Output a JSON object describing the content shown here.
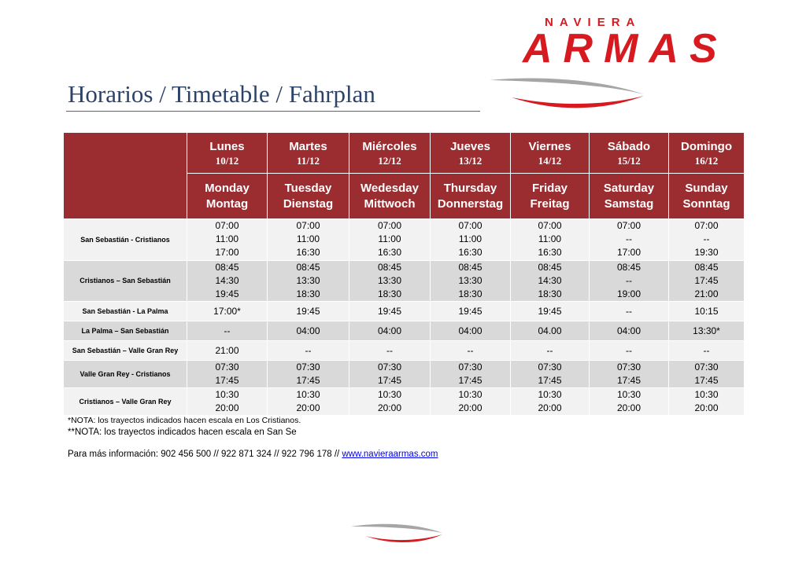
{
  "logo": {
    "line1": "NAVIERA",
    "line2": "ARMAS",
    "brand_color": "#d71920",
    "swoosh_gray": "#a6a6a6"
  },
  "title": "Horarios / Timetable / Fahrplan",
  "header_color": "#9b2d30",
  "days": [
    {
      "es": "Lunes",
      "date": "10/12",
      "en": "Monday",
      "de": "Montag"
    },
    {
      "es": "Martes",
      "date": "11/12",
      "en": "Tuesday",
      "de": "Dienstag"
    },
    {
      "es": "Miércoles",
      "date": "12/12",
      "en": "Wedesday",
      "de": "Mittwoch"
    },
    {
      "es": "Jueves",
      "date": "13/12",
      "en": "Thursday",
      "de": "Donnerstag"
    },
    {
      "es": "Viernes",
      "date": "14/12",
      "en": "Friday",
      "de": "Freitag"
    },
    {
      "es": "Sábado",
      "date": "15/12",
      "en": "Saturday",
      "de": "Samstag"
    },
    {
      "es": "Domingo",
      "date": "16/12",
      "en": "Sunday",
      "de": "Sonntag"
    }
  ],
  "routes": [
    {
      "name": "San Sebastián - Cristianos",
      "cells": [
        [
          "07:00",
          "11:00",
          "17:00"
        ],
        [
          "07:00",
          "11:00",
          "16:30"
        ],
        [
          "07:00",
          "11:00",
          "16:30"
        ],
        [
          "07:00",
          "11:00",
          "16:30"
        ],
        [
          "07:00",
          "11:00",
          "16:30"
        ],
        [
          "07:00",
          "--",
          "17:00"
        ],
        [
          "07:00",
          "--",
          "19:30"
        ]
      ]
    },
    {
      "name": "Cristianos – San Sebastián",
      "cells": [
        [
          "08:45",
          "14:30",
          "19:45"
        ],
        [
          "08:45",
          "13:30",
          "18:30"
        ],
        [
          "08:45",
          "13:30",
          "18:30"
        ],
        [
          "08:45",
          "13:30",
          "18:30"
        ],
        [
          "08:45",
          "14:30",
          "18:30"
        ],
        [
          "08:45",
          "--",
          "19:00"
        ],
        [
          "08:45",
          "17:45",
          "21:00"
        ]
      ]
    },
    {
      "name": "San Sebastián - La Palma",
      "cells": [
        [
          "17:00*"
        ],
        [
          "19:45"
        ],
        [
          "19:45"
        ],
        [
          "19:45"
        ],
        [
          "19:45"
        ],
        [
          "--"
        ],
        [
          "10:15"
        ]
      ]
    },
    {
      "name": "La Palma – San Sebastián",
      "cells": [
        [
          "--"
        ],
        [
          "04:00"
        ],
        [
          "04:00"
        ],
        [
          "04:00"
        ],
        [
          "04.00"
        ],
        [
          "04:00"
        ],
        [
          "13:30*"
        ]
      ]
    },
    {
      "name": "San Sebastián – Valle Gran Rey",
      "cells": [
        [
          "21:00"
        ],
        [
          "--"
        ],
        [
          "--"
        ],
        [
          "--"
        ],
        [
          "--"
        ],
        [
          "--"
        ],
        [
          "--"
        ]
      ]
    },
    {
      "name": "Valle Gran Rey - Cristianos",
      "cells": [
        [
          "07:30",
          "17:45"
        ],
        [
          "07:30",
          "17:45"
        ],
        [
          "07:30",
          "17:45"
        ],
        [
          "07:30",
          "17:45"
        ],
        [
          "07:30",
          "17:45"
        ],
        [
          "07:30",
          "17:45"
        ],
        [
          "07:30",
          "17:45"
        ]
      ]
    },
    {
      "name": "Cristianos – Valle Gran Rey",
      "cells": [
        [
          "10:30",
          "20:00"
        ],
        [
          "10:30",
          "20:00"
        ],
        [
          "10:30",
          "20:00"
        ],
        [
          "10:30",
          "20:00"
        ],
        [
          "10:30",
          "20:00"
        ],
        [
          "10:30",
          "20:00"
        ],
        [
          "10:30",
          "20:00"
        ]
      ]
    }
  ],
  "notes": {
    "note1": "*NOTA: los trayectos indicados hacen escala en Los Cristianos.",
    "note2": "**NOTA: los trayectos indicados hacen escala en San Se"
  },
  "info": {
    "text": "Para más información: 902 456 500 // 922 871 324 // 922 796 178 // ",
    "link": "www.navieraarmas.com"
  }
}
